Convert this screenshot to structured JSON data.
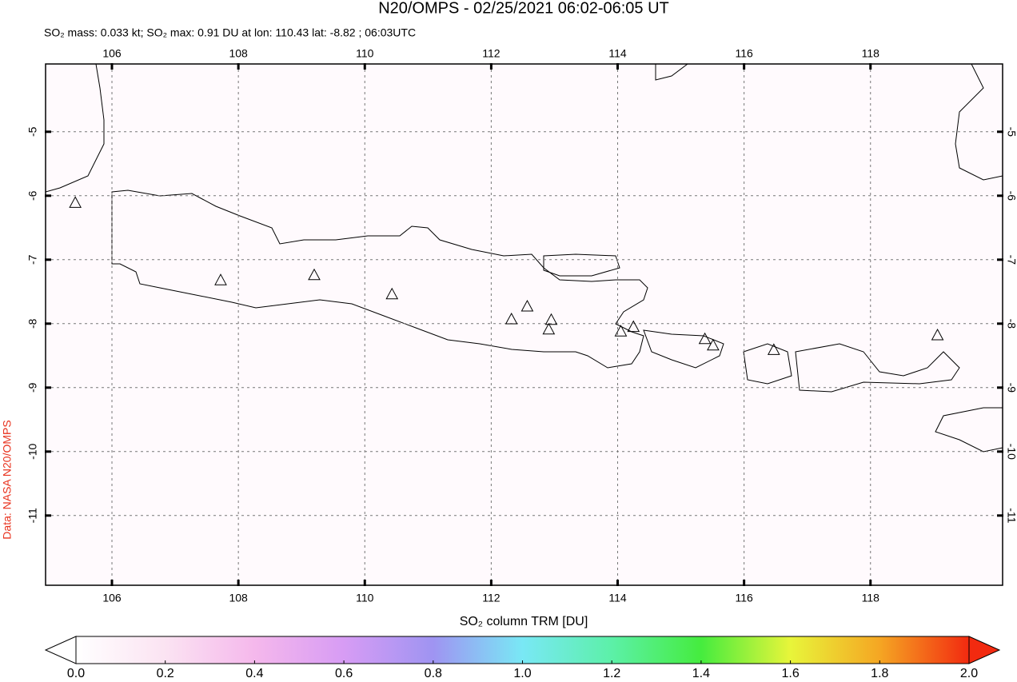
{
  "chart_data": {
    "type": "map",
    "title": "N20/OMPS - 02/25/2021 06:02-06:05 UT",
    "subtitle": "SO₂ mass: 0.033 kt; SO₂ max: 0.91 DU at lon: 110.43 lat: -8.82 ; 06:03UTC",
    "credit": "Data: NASA N20/OMPS",
    "colorbar_label": "SO₂ column TRM [DU]",
    "xlim": [
      104.95,
      120.09
    ],
    "ylim": [
      -12.09,
      -3.94
    ],
    "xticks": [
      106,
      108,
      110,
      112,
      114,
      116,
      118
    ],
    "yticks": [
      -5,
      -6,
      -7,
      -8,
      -9,
      -10,
      -11
    ],
    "grid": true,
    "volcano_color": "#000000",
    "volcanoes": {
      "lon": [
        105.42,
        107.72,
        109.2,
        110.43,
        112.32,
        112.57,
        112.95,
        112.91,
        114.05,
        114.25,
        115.38,
        115.51,
        116.47,
        119.06
      ],
      "lat": [
        -6.12,
        -7.33,
        -7.25,
        -7.55,
        -7.94,
        -7.74,
        -7.95,
        -8.1,
        -8.13,
        -8.06,
        -8.25,
        -8.35,
        -8.42,
        -8.19
      ]
    },
    "clim": [
      0,
      2
    ],
    "cticks": [
      {
        "value": 0,
        "label": "0.0"
      },
      0.2,
      0.4,
      0.6,
      0.8,
      {
        "value": 1,
        "label": "1.0"
      },
      1.2,
      1.4,
      1.6,
      1.8,
      {
        "value": 2,
        "label": "2.0"
      }
    ]
  }
}
